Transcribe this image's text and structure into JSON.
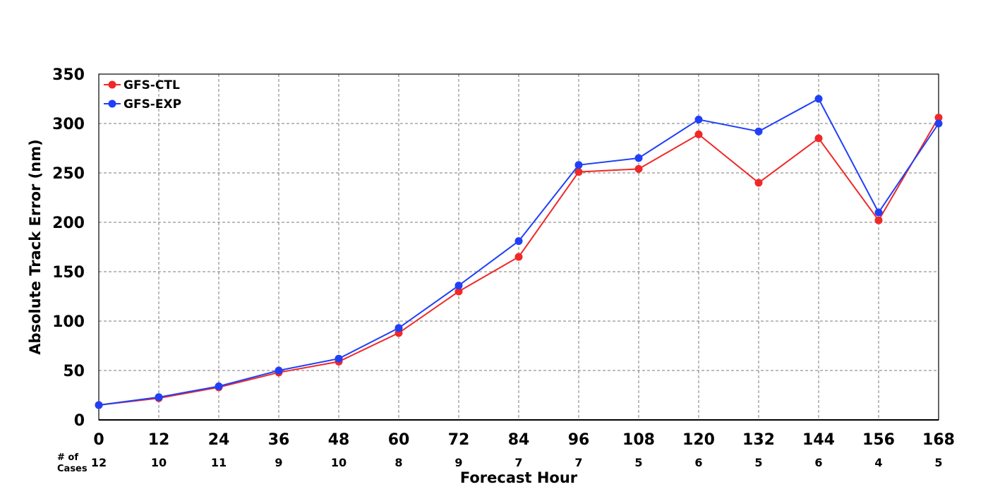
{
  "chart_data": {
    "type": "line",
    "xlabel": "Forecast Hour",
    "ylabel": "Absolute Track Error (nm)",
    "x": [
      0,
      12,
      24,
      36,
      48,
      60,
      72,
      84,
      96,
      108,
      120,
      132,
      144,
      156,
      168
    ],
    "xlim": [
      0,
      168
    ],
    "ylim": [
      0,
      350
    ],
    "y_ticks": [
      0,
      50,
      100,
      150,
      200,
      250,
      300,
      350
    ],
    "grid": true,
    "legend_position": "top-left",
    "cases_label": "# of\nCases",
    "cases": [
      12,
      10,
      11,
      9,
      10,
      8,
      9,
      7,
      7,
      5,
      6,
      5,
      6,
      4,
      5
    ],
    "series": [
      {
        "name": "GFS-CTL",
        "color": "#f02828",
        "values": [
          15,
          22,
          33,
          48,
          59,
          88,
          130,
          165,
          251,
          254,
          289,
          240,
          285,
          202,
          306
        ]
      },
      {
        "name": "GFS-EXP",
        "color": "#2040f8",
        "values": [
          15,
          23,
          34,
          50,
          62,
          93,
          136,
          181,
          258,
          265,
          304,
          292,
          325,
          210,
          300
        ]
      }
    ]
  }
}
